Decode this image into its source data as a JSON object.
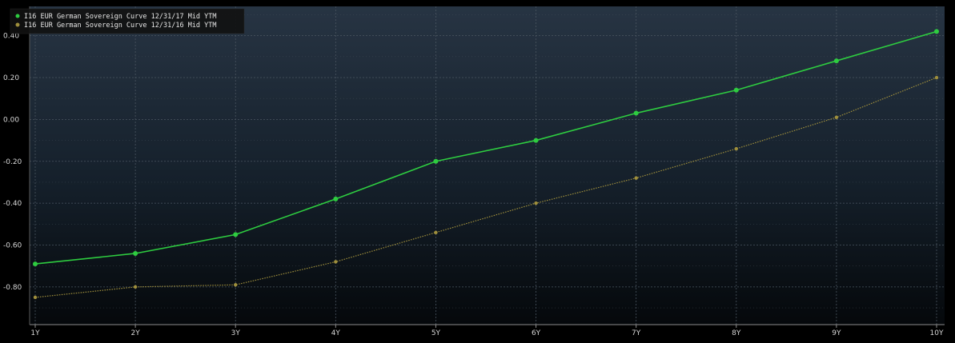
{
  "chart_data": {
    "type": "line",
    "categories": [
      "1Y",
      "2Y",
      "3Y",
      "4Y",
      "5Y",
      "6Y",
      "7Y",
      "8Y",
      "9Y",
      "10Y"
    ],
    "series": [
      {
        "name": "I16 EUR German Sovereign Curve 12/31/17 Mid YTM",
        "color": "#2ecc40",
        "values": [
          -0.69,
          -0.64,
          -0.55,
          -0.38,
          -0.2,
          -0.1,
          0.03,
          0.14,
          0.28,
          0.42
        ]
      },
      {
        "name": "I16 EUR German Sovereign Curve 12/31/16 Mid YTM",
        "color": "#9f8f3c",
        "values": [
          -0.85,
          -0.8,
          -0.79,
          -0.68,
          -0.54,
          -0.4,
          -0.28,
          -0.14,
          0.01,
          0.2
        ]
      }
    ],
    "y_ticks": [
      "0.40",
      "0.20",
      "0.00",
      "-0.20",
      "-0.40",
      "-0.60",
      "-0.80"
    ],
    "y_tick_values": [
      0.4,
      0.2,
      0,
      -0.2,
      -0.4,
      -0.6,
      -0.8
    ],
    "ylim": [
      -0.98,
      0.54
    ],
    "grid": true,
    "legend_position": "top-left",
    "title": "",
    "xlabel": "",
    "ylabel": ""
  },
  "colors": {
    "background": "#000000",
    "grid": "#4a5560",
    "axis_text": "#d7d7d7",
    "legend_bg": "#111111"
  }
}
